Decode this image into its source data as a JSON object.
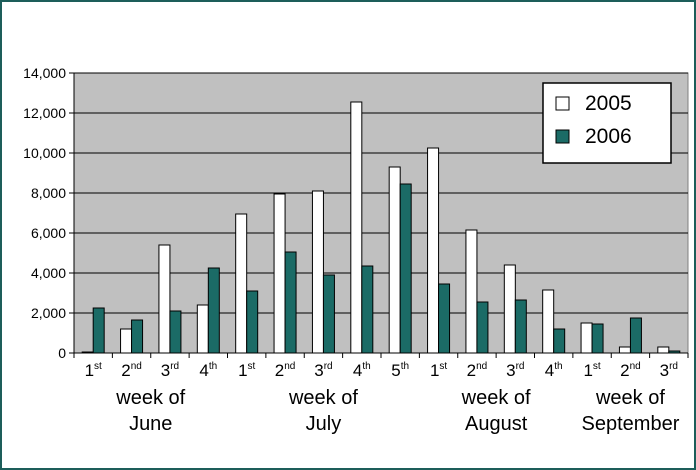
{
  "chart_data": {
    "type": "bar",
    "title": "",
    "xlabel": "",
    "ylabel": "",
    "ylim": [
      0,
      14000
    ],
    "yticks": [
      "0",
      "2,000",
      "4,000",
      "6,000",
      "8,000",
      "10,000",
      "12,000",
      "14,000"
    ],
    "grid": true,
    "legend_position": "top-right",
    "categories": [
      {
        "n": "1",
        "s": "st"
      },
      {
        "n": "2",
        "s": "nd"
      },
      {
        "n": "3",
        "s": "rd"
      },
      {
        "n": "4",
        "s": "th"
      },
      {
        "n": "1",
        "s": "st"
      },
      {
        "n": "2",
        "s": "nd"
      },
      {
        "n": "3",
        "s": "rd"
      },
      {
        "n": "4",
        "s": "th"
      },
      {
        "n": "5",
        "s": "th"
      },
      {
        "n": "1",
        "s": "st"
      },
      {
        "n": "2",
        "s": "nd"
      },
      {
        "n": "3",
        "s": "rd"
      },
      {
        "n": "4",
        "s": "th"
      },
      {
        "n": "1",
        "s": "st"
      },
      {
        "n": "2",
        "s": "nd"
      },
      {
        "n": "3",
        "s": "rd"
      }
    ],
    "groups": [
      {
        "line1": "week of",
        "line2": "June",
        "start": 0,
        "count": 4
      },
      {
        "line1": "week of",
        "line2": "July",
        "start": 4,
        "count": 5
      },
      {
        "line1": "week of",
        "line2": "August",
        "start": 9,
        "count": 4
      },
      {
        "line1": "week of",
        "line2": "September",
        "start": 13,
        "count": 3
      }
    ],
    "series": [
      {
        "name": "2005",
        "color": "#ffffff",
        "values": [
          50,
          1200,
          5400,
          2400,
          6950,
          7950,
          8100,
          12550,
          9300,
          10250,
          6150,
          4400,
          3150,
          1500,
          300,
          300
        ]
      },
      {
        "name": "2006",
        "color": "#1b6b66",
        "values": [
          2250,
          1650,
          2100,
          4250,
          3100,
          5050,
          3900,
          4350,
          8450,
          3450,
          2550,
          2650,
          1200,
          1450,
          1750,
          100
        ]
      }
    ],
    "colors": {
      "plot_bg": "#c0c0c0",
      "frame": "#1d5e5a"
    }
  }
}
